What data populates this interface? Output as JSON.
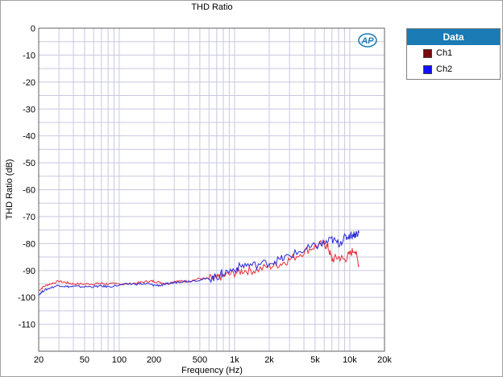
{
  "chart_data": {
    "type": "line",
    "title": "THD Ratio",
    "xlabel": "Frequency (Hz)",
    "ylabel": "THD Ratio (dB)",
    "xscale": "log",
    "xlim": [
      20,
      20000
    ],
    "ylim": [
      -120,
      0
    ],
    "x_ticks": [
      20,
      50,
      100,
      200,
      500,
      1000,
      2000,
      5000,
      10000,
      20000
    ],
    "x_tick_labels": [
      "20",
      "50",
      "100",
      "200",
      "500",
      "1k",
      "2k",
      "5k",
      "10k",
      "20k"
    ],
    "y_ticks": [
      0,
      -10,
      -20,
      -30,
      -40,
      -50,
      -60,
      -70,
      -80,
      -90,
      -100,
      -110
    ],
    "y_tick_labels": [
      "0",
      "-10",
      "-20",
      "-30",
      "-40",
      "-50",
      "-60",
      "-70",
      "-80",
      "-90",
      "-100",
      "-110"
    ],
    "grid": true,
    "legend": {
      "title": "Data",
      "position": "right"
    },
    "logo_text": "AP",
    "series": [
      {
        "name": "Ch1",
        "color": "#e8303a",
        "legend_color": "#7a0a0a",
        "x": [
          20,
          22,
          25,
          30,
          35,
          40,
          50,
          60,
          70,
          80,
          100,
          120,
          150,
          180,
          200,
          230,
          260,
          300,
          350,
          400,
          500,
          600,
          700,
          800,
          1000,
          1200,
          1500,
          2000,
          2500,
          3000,
          4000,
          5000,
          6000,
          6500,
          7000,
          8000,
          9000,
          10000,
          11000,
          12000
        ],
        "y": [
          -97.5,
          -96,
          -95,
          -94,
          -94.5,
          -95,
          -95,
          -95,
          -94.8,
          -95,
          -95,
          -95,
          -94.5,
          -94,
          -94,
          -94.5,
          -95,
          -94,
          -94,
          -94,
          -93,
          -93,
          -93,
          -92,
          -91,
          -90,
          -90,
          -88.5,
          -87.5,
          -86,
          -83,
          -81,
          -80,
          -81.5,
          -86,
          -85,
          -86,
          -84,
          -82,
          -88
        ]
      },
      {
        "name": "Ch2",
        "color": "#2a2ad8",
        "legend_color": "#1010ff",
        "x": [
          20,
          22,
          25,
          30,
          35,
          40,
          50,
          60,
          70,
          80,
          100,
          120,
          150,
          180,
          200,
          230,
          260,
          300,
          350,
          400,
          500,
          600,
          700,
          800,
          1000,
          1200,
          1500,
          2000,
          2500,
          3000,
          4000,
          5000,
          6000,
          7000,
          8000,
          9000,
          10000,
          11000,
          12000
        ],
        "y": [
          -99,
          -97.5,
          -96.5,
          -95.5,
          -96,
          -96,
          -96,
          -96,
          -95.8,
          -96,
          -95.5,
          -95,
          -95,
          -95,
          -95.5,
          -95.5,
          -95,
          -94.5,
          -94,
          -94,
          -93.5,
          -93,
          -92.5,
          -91,
          -89.5,
          -88,
          -88,
          -87,
          -86,
          -84.5,
          -82.5,
          -81,
          -80,
          -78.5,
          -80,
          -78,
          -77,
          -76.5,
          -76
        ]
      }
    ]
  }
}
